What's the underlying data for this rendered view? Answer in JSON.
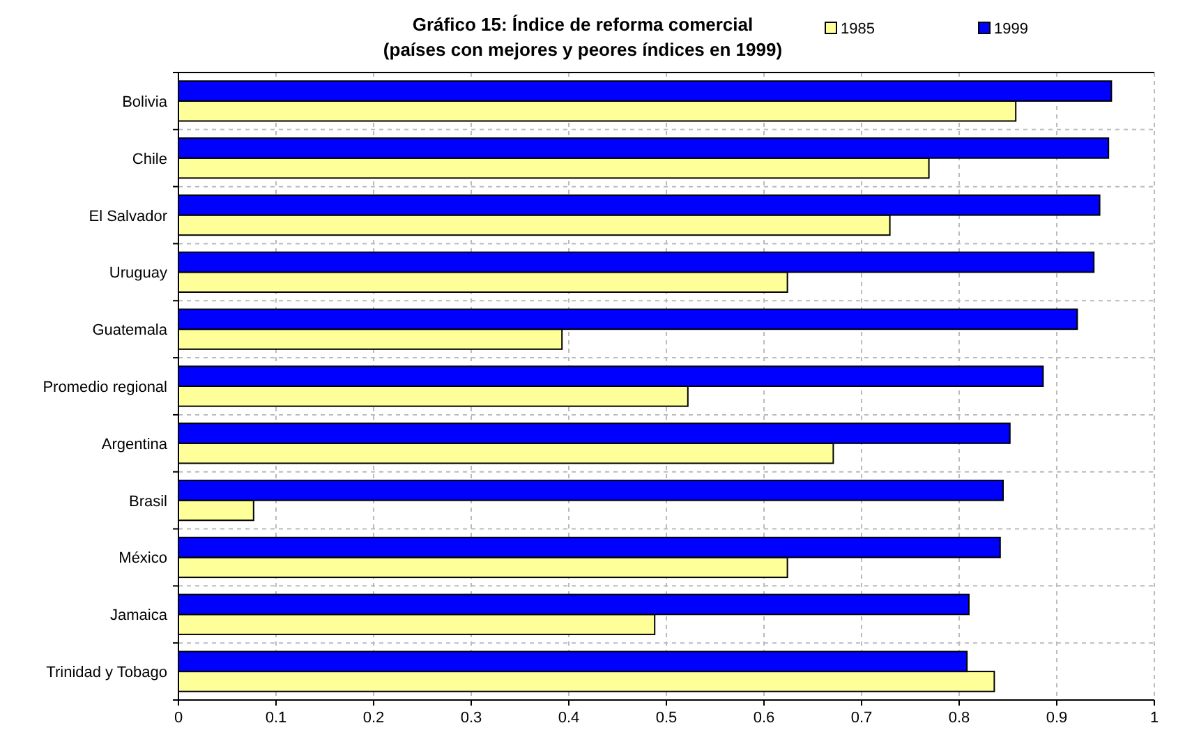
{
  "chart_data": {
    "type": "bar",
    "orientation": "horizontal",
    "title": "Gráfico 15: Índice de reforma comercial",
    "subtitle": "(países con mejores y peores índices en 1999)",
    "categories": [
      "Bolivia",
      "Chile",
      "El Salvador",
      "Uruguay",
      "Guatemala",
      "Promedio regional",
      "Argentina",
      "Brasil",
      "México",
      "Jamaica",
      "Trinidad y Tobago"
    ],
    "series": [
      {
        "name": "1985",
        "color": "#ffff99",
        "values": [
          0.858,
          0.769,
          0.729,
          0.624,
          0.393,
          0.522,
          0.671,
          0.077,
          0.624,
          0.488,
          0.836
        ]
      },
      {
        "name": "1999",
        "color": "#0000ff",
        "values": [
          0.956,
          0.953,
          0.944,
          0.938,
          0.921,
          0.886,
          0.852,
          0.845,
          0.842,
          0.81,
          0.808
        ]
      }
    ],
    "xlim": [
      0,
      1
    ],
    "xticks": [
      0,
      0.1,
      0.2,
      0.3,
      0.4,
      0.5,
      0.6,
      0.7,
      0.8,
      0.9,
      1
    ],
    "grid": true,
    "legend": "top right"
  }
}
